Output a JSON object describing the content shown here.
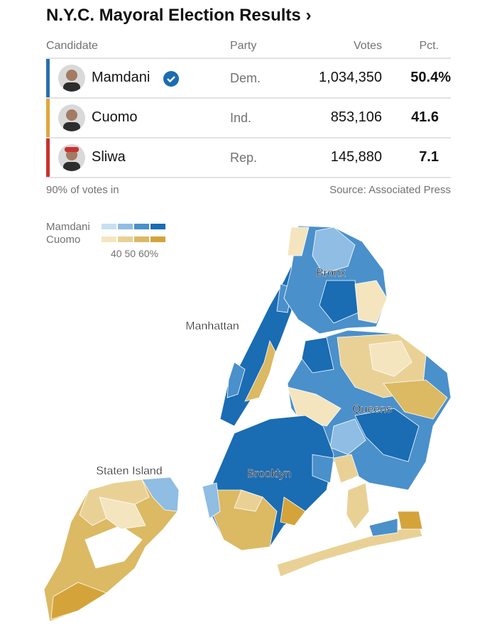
{
  "header": {
    "title": "N.Y.C. Mayoral Election Results ›"
  },
  "table": {
    "columns": [
      "Candidate",
      "Party",
      "Votes",
      "Pct."
    ],
    "rows": [
      [
        "Mamdani",
        "Dem.",
        "1,034,350",
        "50.4%"
      ],
      [
        "Cuomo",
        "Ind.",
        "853,106",
        "41.6"
      ],
      [
        "Sliwa",
        "Rep.",
        "145,880",
        "7.1"
      ]
    ]
  },
  "footer": {
    "note": "90% of votes in",
    "source": "Source: Associated Press"
  },
  "legend": {
    "labels": [
      "Mamdani",
      "Cuomo"
    ],
    "scale_labels": [
      "40",
      "50",
      "60%"
    ]
  },
  "map": {
    "labels": [
      "Bronx",
      "Manhattan",
      "Queens",
      "Brooklyn",
      "Staten Island"
    ]
  }
}
